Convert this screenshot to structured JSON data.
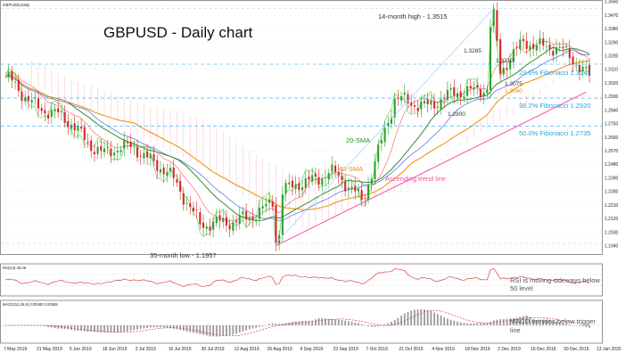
{
  "window": {
    "symbol_label": "GBPUSD,Daily"
  },
  "title": "GBPUSD - Daily chart",
  "chart_data": {
    "type": "candlestick",
    "title": "GBPUSD - Daily chart",
    "price_axis": {
      "range": [
        1.1885,
        1.3565
      ],
      "ticks": [
        "1.3560",
        "1.3470",
        "1.3380",
        "1.3290",
        "1.3200",
        "1.3110",
        "1.3020",
        "1.2930",
        "1.2840",
        "1.2750",
        "1.2660",
        "1.2570",
        "1.2480",
        "1.2390",
        "1.2300",
        "1.2210",
        "1.2120",
        "1.2030",
        "1.1940"
      ]
    },
    "date_axis": {
      "labels": [
        "7 May 2019",
        "21 May 2019",
        "5 Jun 2019",
        "18 Jun 2019",
        "2 Jul 2019",
        "16 Jul 2019",
        "30 Jul 2019",
        "12 Aug 2019",
        "26 Aug 2019",
        "9 Sep 2019",
        "23 Sep 2019",
        "7 Oct 2019",
        "21 Oct 2019",
        "4 Nov 2019",
        "18 Nov 2019",
        "2 Dec 2019",
        "16 Dec 2019",
        "30 Dec 2019",
        "13 Jan 2020"
      ]
    },
    "close_series_keypoints": [
      [
        "7 May 2019",
        1.305
      ],
      [
        "21 May 2019",
        1.287
      ],
      [
        "5 Jun 2019",
        1.275
      ],
      [
        "18 Jun 2019",
        1.255
      ],
      [
        "2 Jul 2019",
        1.26
      ],
      [
        "16 Jul 2019",
        1.242
      ],
      [
        "30 Jul 2019",
        1.21
      ],
      [
        "12 Aug 2019",
        1.208
      ],
      [
        "26 Aug 2019",
        1.22
      ],
      [
        "9 Sep 2019",
        1.235
      ],
      [
        "23 Sep 2019",
        1.243
      ],
      [
        "7 Oct 2019",
        1.225
      ],
      [
        "21 Oct 2019",
        1.29
      ],
      [
        "4 Nov 2019",
        1.288
      ],
      [
        "18 Nov 2019",
        1.295
      ],
      [
        "2 Dec 2019",
        1.301
      ],
      [
        "16 Dec 2019",
        1.33
      ],
      [
        "30 Dec 2019",
        1.325
      ],
      [
        "13 Jan 2020",
        1.3075
      ]
    ],
    "moving_averages": [
      {
        "name": "20-SMA",
        "color": "#2f8f2f"
      },
      {
        "name": "40-SMA",
        "color": "#f08c00"
      }
    ],
    "fibonacci_levels": [
      {
        "label": "23.6% Fibonacci 1.3145",
        "value": 1.3145
      },
      {
        "label": "38.2% Fibonacci 1.2920",
        "value": 1.292
      },
      {
        "label": "50.0% Fibonacci 1.2735",
        "value": 1.2735
      }
    ],
    "annotations": {
      "high": {
        "label": "14-month high - 1.3515",
        "value": 1.3515
      },
      "low": {
        "label": "35-month low - 1.1957",
        "value": 1.1957
      },
      "trendline": "Ascending trend line",
      "levels": [
        "1.3285",
        "1.3210",
        "1.3075",
        "1.3040",
        "1.2900"
      ]
    },
    "rsi": {
      "header": "RSI(14) 45.05",
      "note": "RSI is moving sideways below 50 level"
    },
    "macd": {
      "header": "MACD(12,26,9) 0.00480 0.00265",
      "note": "MACD remains below trigger line"
    },
    "colors": {
      "bull": "#2ca02c",
      "bear": "#d62728",
      "fib": "#29a3e0",
      "trend": "#ff4fa0",
      "high_line": "#9ecfff"
    }
  }
}
